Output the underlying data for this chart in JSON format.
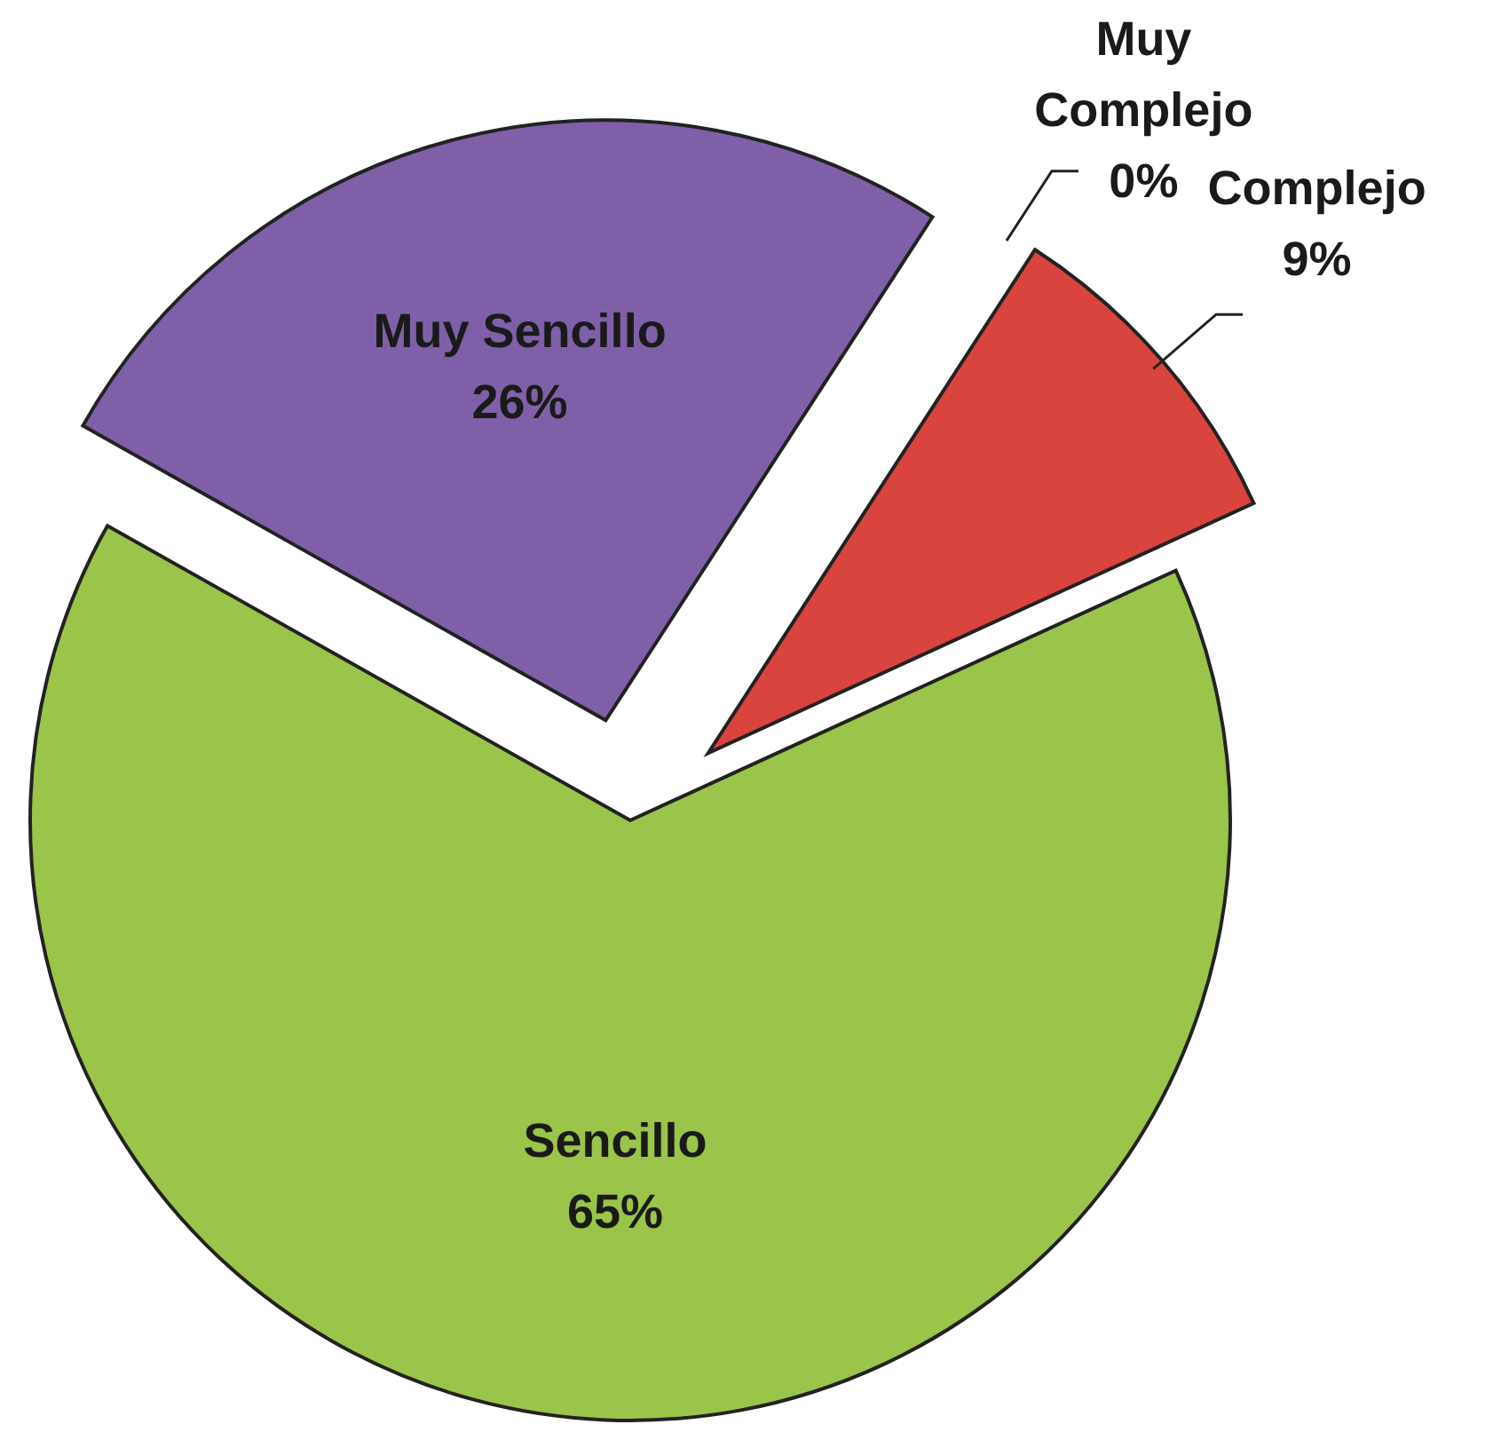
{
  "chart_data": {
    "type": "pie",
    "categories": [
      "Muy Complejo",
      "Complejo",
      "Sencillo",
      "Muy Sencillo"
    ],
    "values": [
      0,
      9,
      65,
      26
    ],
    "colors": [
      null,
      "#d9443e",
      "#9bc44a",
      "#7f60a8"
    ],
    "value_labels": [
      "0%",
      "9%",
      "65%",
      "26%"
    ]
  }
}
